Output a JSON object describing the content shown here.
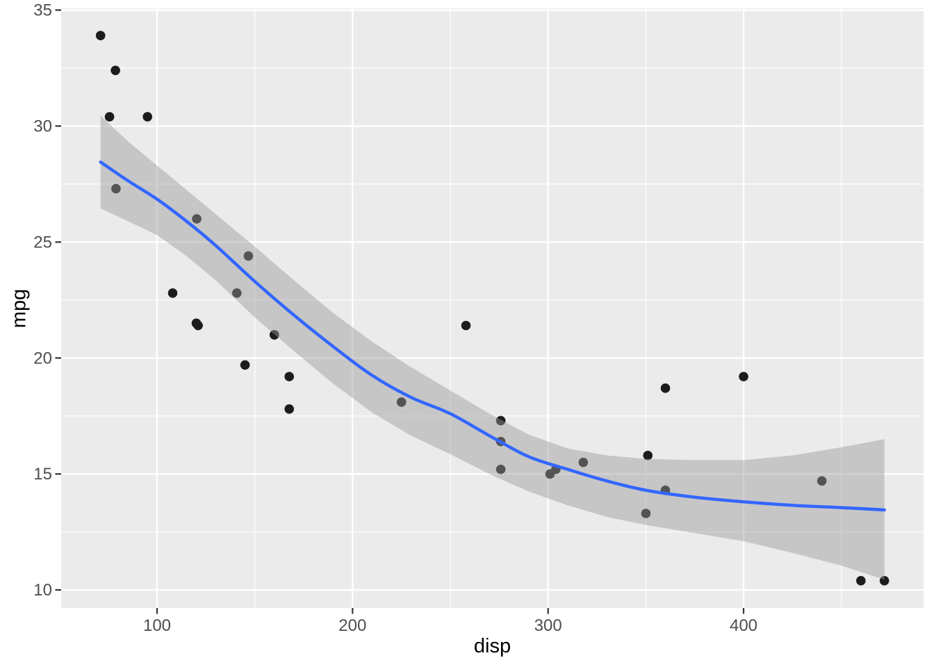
{
  "figure": {
    "background": "#FFFFFF",
    "description": "ggplot2-style scatter plot with loess smooth and confidence ribbon"
  },
  "chart_data": {
    "type": "scatter",
    "title": "",
    "xlabel": "disp",
    "ylabel": "mpg",
    "legend": "none",
    "grid": "white major+minor gridlines on gray panel",
    "x_range": [
      50.95,
      492.05
    ],
    "y_range": [
      9.225,
      35.075
    ],
    "x_major_ticks": [
      100,
      200,
      300,
      400
    ],
    "x_tick_labels": [
      "100",
      "200",
      "300",
      "400"
    ],
    "x_minor_ticks": [
      150,
      250,
      350,
      450
    ],
    "y_major_ticks": [
      10,
      15,
      20,
      25,
      30,
      35
    ],
    "y_tick_labels": [
      "10",
      "15",
      "20",
      "25",
      "30",
      "35"
    ],
    "y_minor_ticks": [
      12.5,
      17.5,
      22.5,
      27.5,
      32.5
    ],
    "series": [
      {
        "name": "observations",
        "type": "point",
        "x": [
          160,
          160,
          108,
          258,
          360,
          225,
          360,
          146.7,
          140.8,
          167.6,
          167.6,
          275.8,
          275.8,
          275.8,
          472,
          460,
          440,
          78.7,
          75.7,
          71.1,
          120.1,
          318,
          304,
          350,
          400,
          79,
          120.3,
          95.1,
          351,
          145,
          301,
          121
        ],
        "y": [
          21.0,
          21.0,
          22.8,
          21.4,
          18.7,
          18.1,
          14.3,
          24.4,
          22.8,
          19.2,
          17.8,
          16.4,
          17.3,
          15.2,
          10.4,
          10.4,
          14.7,
          32.4,
          30.4,
          33.9,
          21.5,
          15.5,
          15.2,
          13.3,
          19.2,
          27.3,
          26.0,
          30.4,
          15.8,
          19.7,
          15.0,
          21.4
        ]
      },
      {
        "name": "loess-smooth",
        "type": "line-with-ribbon",
        "x": [
          71.1,
          85,
          100,
          115,
          130,
          150,
          170,
          190,
          210,
          230,
          250,
          270,
          290,
          310,
          330,
          350,
          375,
          400,
          425,
          450,
          472
        ],
        "fit": [
          28.45,
          27.65,
          26.85,
          25.9,
          24.85,
          23.3,
          21.85,
          20.5,
          19.25,
          18.3,
          17.6,
          16.65,
          15.75,
          15.2,
          14.7,
          14.3,
          14.0,
          13.8,
          13.65,
          13.55,
          13.45
        ],
        "lo": [
          26.45,
          25.9,
          25.3,
          24.4,
          23.35,
          21.75,
          20.3,
          18.9,
          17.65,
          16.65,
          15.85,
          15.0,
          14.25,
          13.65,
          13.15,
          12.8,
          12.45,
          12.1,
          11.6,
          11.05,
          10.45
        ],
        "hi": [
          30.45,
          29.35,
          28.3,
          27.25,
          26.2,
          24.8,
          23.35,
          21.95,
          20.7,
          19.6,
          18.6,
          17.6,
          16.7,
          16.1,
          15.8,
          15.65,
          15.6,
          15.6,
          15.8,
          16.15,
          16.5
        ]
      }
    ],
    "colors": {
      "panel": "#EBEBEB",
      "grid": "#FFFFFF",
      "point": "#1C1C1C",
      "smooth_line": "#3366FF",
      "ribbon": "#999999",
      "ribbon_alpha": 0.45,
      "tick_text": "#4D4D4D",
      "tick_mark": "#333333",
      "axis_title": "#000000"
    }
  }
}
